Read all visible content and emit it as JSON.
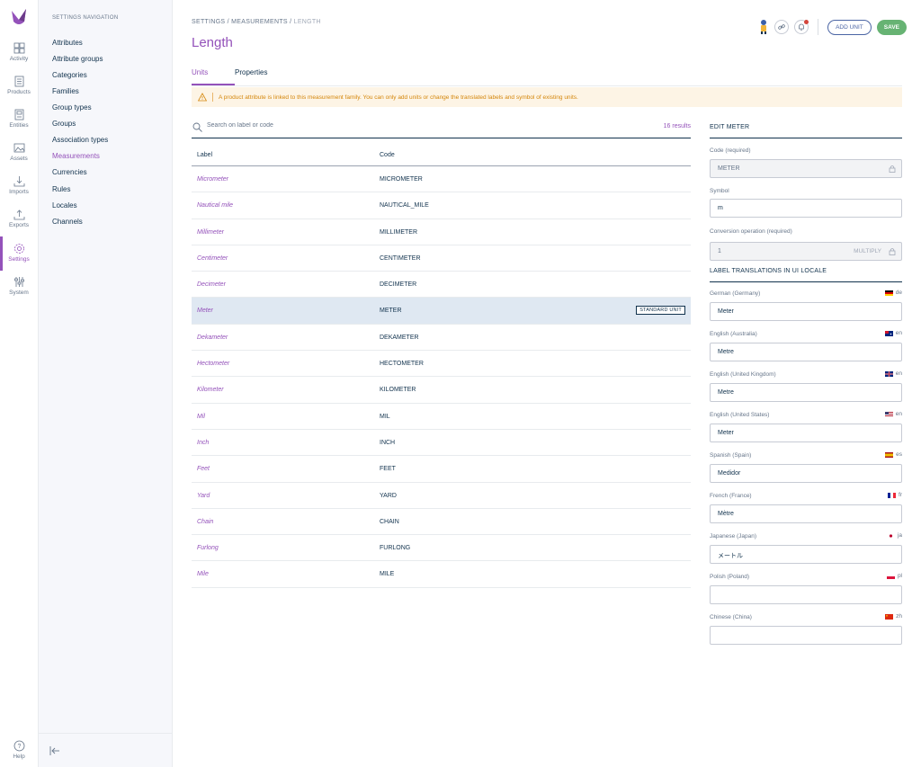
{
  "iconbar": {
    "items": [
      {
        "label": "Activity",
        "icon": "activity-icon"
      },
      {
        "label": "Products",
        "icon": "products-icon"
      },
      {
        "label": "Entities",
        "icon": "entities-icon"
      },
      {
        "label": "Assets",
        "icon": "assets-icon"
      },
      {
        "label": "Imports",
        "icon": "imports-icon"
      },
      {
        "label": "Exports",
        "icon": "exports-icon"
      },
      {
        "label": "Settings",
        "icon": "settings-icon"
      },
      {
        "label": "System",
        "icon": "system-icon"
      }
    ],
    "help": "Help"
  },
  "subnav": {
    "title": "SETTINGS NAVIGATION",
    "items": [
      "Attributes",
      "Attribute groups",
      "Categories",
      "Families",
      "Group types",
      "Groups",
      "Association types",
      "Measurements",
      "Currencies",
      "Rules",
      "Locales",
      "Channels"
    ]
  },
  "breadcrumb": [
    "SETTINGS",
    "MEASUREMENTS",
    "LENGTH"
  ],
  "page_title": "Length",
  "actions": {
    "add_unit": "ADD UNIT",
    "save": "SAVE"
  },
  "tabs": [
    "Units",
    "Properties"
  ],
  "warning": "A product attribute is linked to this measurement family. You can only add units or change the translated labels and symbol of existing units.",
  "search": {
    "placeholder": "Search on label or code",
    "count": "16 results"
  },
  "table": {
    "headers": {
      "label": "Label",
      "code": "Code"
    },
    "rows": [
      {
        "label": "Micrometer",
        "code": "MICROMETER"
      },
      {
        "label": "Nautical mile",
        "code": "NAUTICAL_MILE"
      },
      {
        "label": "Millimeter",
        "code": "MILLIMETER"
      },
      {
        "label": "Centimeter",
        "code": "CENTIMETER"
      },
      {
        "label": "Decimeter",
        "code": "DECIMETER"
      },
      {
        "label": "Meter",
        "code": "METER",
        "badge": "STANDARD UNIT"
      },
      {
        "label": "Dekameter",
        "code": "DEKAMETER"
      },
      {
        "label": "Hectometer",
        "code": "HECTOMETER"
      },
      {
        "label": "Kilometer",
        "code": "KILOMETER"
      },
      {
        "label": "Mil",
        "code": "MIL"
      },
      {
        "label": "Inch",
        "code": "INCH"
      },
      {
        "label": "Feet",
        "code": "FEET"
      },
      {
        "label": "Yard",
        "code": "YARD"
      },
      {
        "label": "Chain",
        "code": "CHAIN"
      },
      {
        "label": "Furlong",
        "code": "FURLONG"
      },
      {
        "label": "Mile",
        "code": "MILE"
      }
    ]
  },
  "panel": {
    "title": "EDIT METER",
    "code_label": "Code (required)",
    "code_value": "METER",
    "symbol_label": "Symbol",
    "symbol_value": "m",
    "conversion_label": "Conversion operation (required)",
    "conversion_value": "1",
    "conversion_op": "MULTIPLY",
    "translations_title": "LABEL TRANSLATIONS IN UI LOCALE",
    "translations": [
      {
        "language": "German (Germany)",
        "locale": "de",
        "value": "Meter"
      },
      {
        "language": "English (Australia)",
        "locale": "en",
        "value": "Metre"
      },
      {
        "language": "English (United Kingdom)",
        "locale": "en",
        "value": "Metre"
      },
      {
        "language": "English (United States)",
        "locale": "en",
        "value": "Meter"
      },
      {
        "language": "Spanish (Spain)",
        "locale": "es",
        "value": "Medidor"
      },
      {
        "language": "French (France)",
        "locale": "fr",
        "value": "Mètre"
      },
      {
        "language": "Japanese (Japan)",
        "locale": "ja",
        "value": "メートル"
      },
      {
        "language": "Polish (Poland)",
        "locale": "pl",
        "value": ""
      },
      {
        "language": "Chinese (China)",
        "locale": "zh",
        "value": ""
      }
    ]
  },
  "colors": {
    "accent": "#9452ba",
    "save": "#67b373",
    "warning_text": "#d4860b",
    "warning_bg": "#fdf4e5",
    "selected_row": "#dfe8f2"
  }
}
